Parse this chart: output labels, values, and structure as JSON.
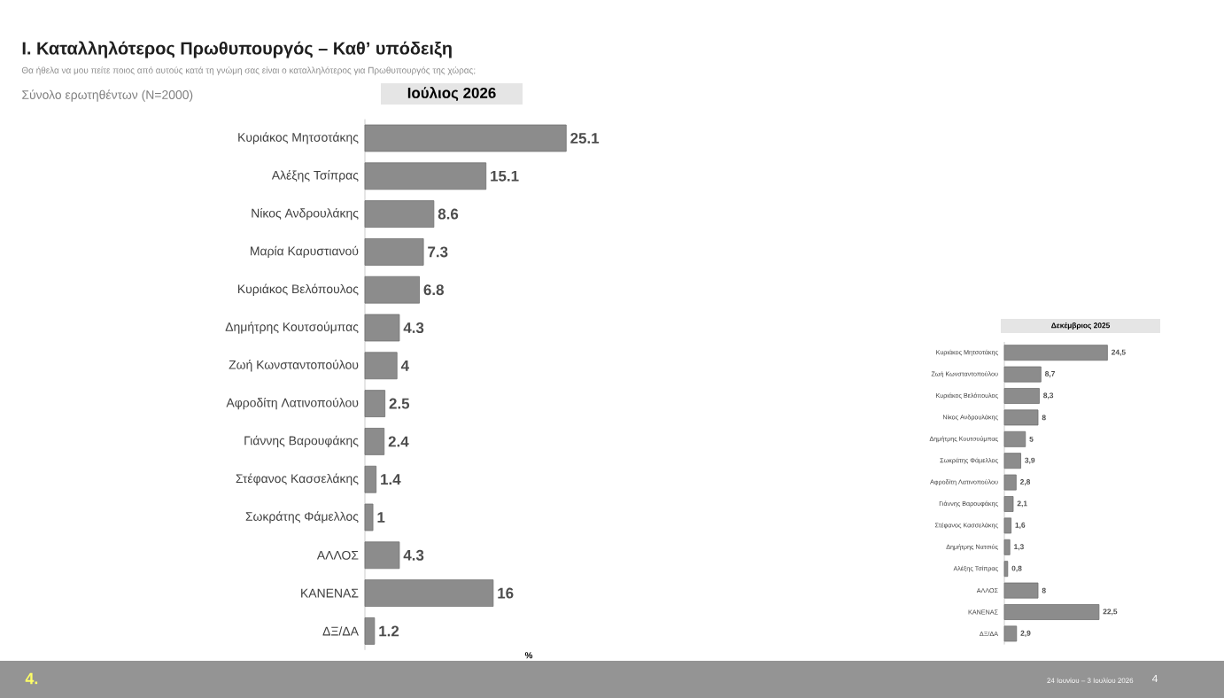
{
  "chart_data": [
    {
      "type": "other",
      "title": "Ι. Καταλληλότερος  Πρωθυπουργός – Καθ’ υπόδειξη",
      "subtitle": "Θα ήθελα να μου πείτε ποιος από αυτούς κατά τη γνώμη σας είναι ο καταλληλότερος για Πρωθυπουργός της χώρας;",
      "annotations": [
        "Σύνολο ερωτηθέντων (N=2000)",
        "4.",
        "24 Ιουνίου – 3 Ιουλίου 2026",
        "4"
      ]
    },
    {
      "type": "bar",
      "orientation": "horizontal",
      "title": "Ιούλιος 2026",
      "xlabel": "%",
      "categories": [
        "Κυριάκος Μητσοτάκης",
        "Αλέξης Τσίπρας",
        "Νίκος Ανδρουλάκης",
        "Μαρία Καρυστιανού",
        "Κυριάκος Βελόπουλος",
        "Δημήτρης Κουτσούμπας",
        "Ζωή Κωνσταντοπούλου",
        "Αφροδίτη Λατινοπούλου",
        "Γιάννης Βαρουφάκης",
        "Στέφανος Κασσελάκης",
        "Σωκράτης Φάμελλος",
        "ΑΛΛΟΣ",
        "ΚΑΝΕΝΑΣ",
        "ΔΞ/ΔΑ"
      ],
      "values": [
        25.1,
        15.1,
        8.6,
        7.3,
        6.8,
        4.3,
        4,
        2.5,
        2.4,
        1.4,
        1,
        4.3,
        16,
        1.2
      ],
      "color": "#8c8c8c",
      "data_labels": true,
      "tick_labels": "y"
    },
    {
      "type": "bar",
      "orientation": "horizontal",
      "title": "Δεκέμβριος 2025",
      "categories": [
        "Κυριάκος Μητσοτάκης",
        "Ζωή Κωνσταντοπούλου",
        "Κυριάκος Βελόπουλος",
        "Νίκος Ανδρουλάκης",
        "Δημήτρης Κουτσούμπας",
        "Σωκράτης Φάμελλος",
        "Αφροδίτη Λατινοπούλου",
        "Γιάννης Βαρουφάκης",
        "Στέφανος Κασσελάκης",
        "Δημήτρης Νατσιός",
        "Αλέξης Τσίπρας",
        "ΑΛΛΟΣ",
        "ΚΑΝΕΝΑΣ",
        "ΔΞ/ΔΑ"
      ],
      "values": [
        24.5,
        8.7,
        8.3,
        8,
        5,
        3.9,
        2.8,
        2.1,
        1.6,
        1.3,
        0.8,
        8,
        22.5,
        2.9
      ],
      "value_labels": [
        "24,5",
        "8,7",
        "8,3",
        "8",
        "5",
        "3,9",
        "2,8",
        "2,1",
        "1,6",
        "1,3",
        "0,8",
        "8",
        "22,5",
        "2,9"
      ],
      "color": "#8c8c8c",
      "tick_labels": "y"
    }
  ]
}
